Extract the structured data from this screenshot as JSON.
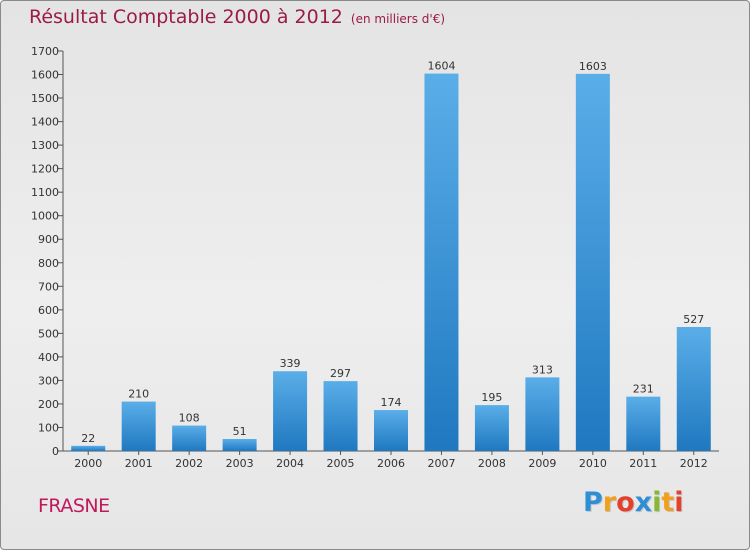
{
  "title": "Résultat Comptable 2000 à 2012",
  "subtitle": "(en milliers d'€)",
  "commune": "FRASNE",
  "logo": {
    "text": "Proxiti",
    "letters": [
      "P",
      "r",
      "o",
      "x",
      "i",
      "t",
      "i"
    ],
    "colors": [
      "#2e8fd6",
      "#f0a020",
      "#e4402c",
      "#2e8fd6",
      "#86b832",
      "#f0a020",
      "#e4402c"
    ]
  },
  "colors": {
    "title": "#9b1b47",
    "bar_top": "#5aaee8",
    "bar_bottom": "#1f78c0",
    "axis": "#555555"
  },
  "chart_data": {
    "type": "bar",
    "categories": [
      "2000",
      "2001",
      "2002",
      "2003",
      "2004",
      "2005",
      "2006",
      "2007",
      "2008",
      "2009",
      "2010",
      "2011",
      "2012"
    ],
    "values": [
      22,
      210,
      108,
      51,
      339,
      297,
      174,
      1604,
      195,
      313,
      1603,
      231,
      527
    ],
    "ylim": [
      0,
      1700
    ],
    "yticks": [
      0,
      100,
      200,
      300,
      400,
      500,
      600,
      700,
      800,
      900,
      1000,
      1100,
      1200,
      1300,
      1400,
      1500,
      1600,
      1700
    ],
    "grid": false,
    "xlabel": "",
    "ylabel": ""
  }
}
